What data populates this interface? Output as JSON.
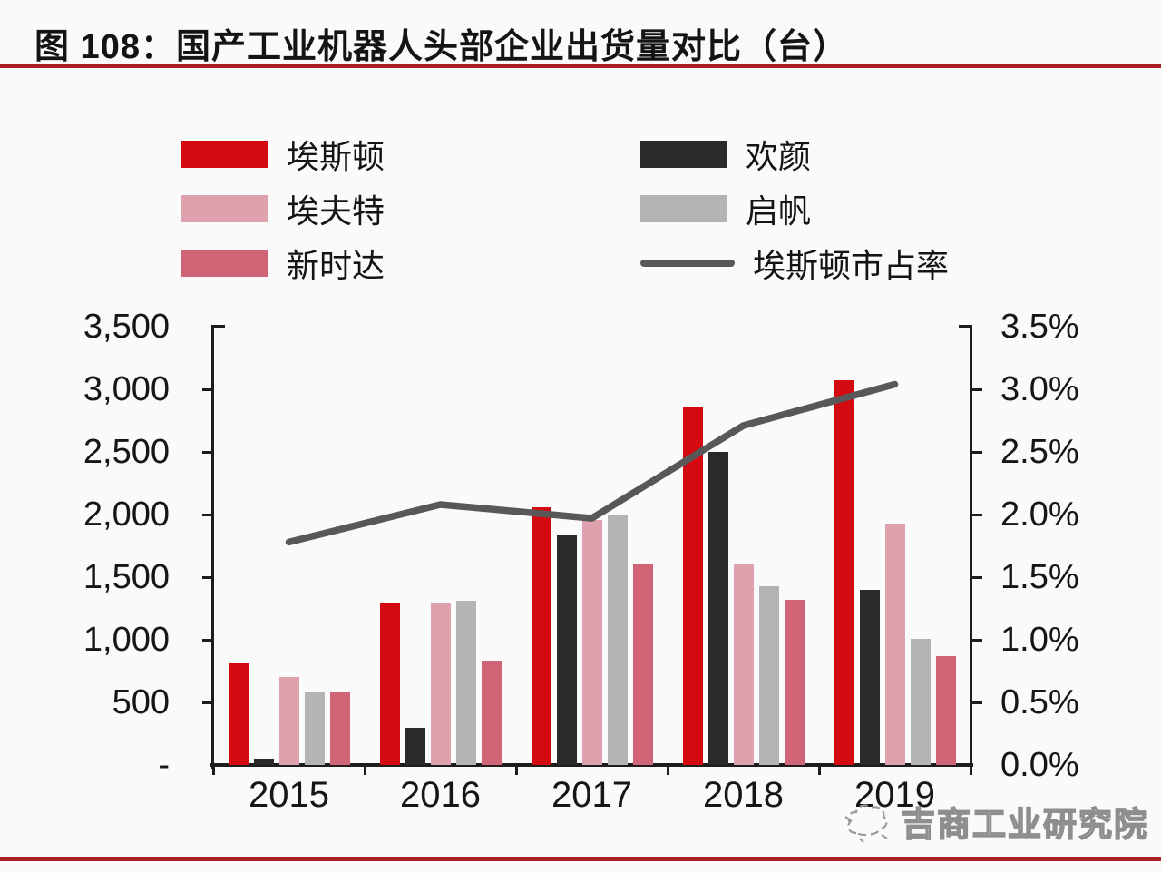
{
  "header": {
    "title": "图 108：国产工业机器人头部企业出货量对比（台）"
  },
  "colors": {
    "estun_red": "#d40a10",
    "huanyan_black": "#2b2a2a",
    "efort_pink": "#dda2ae",
    "qifan_gray": "#b4b4b6",
    "xinshida_rose": "#d16476",
    "share_line_gray": "#595757",
    "axis_black": "#1d1d1d",
    "title_rule_red": "#a81e22",
    "bottom_rule_red": "#a81e22",
    "background": "#fbfafb"
  },
  "legend": {
    "left_items": [
      {
        "label": "埃斯顿",
        "swatch": "bar",
        "color": "#d40a10"
      },
      {
        "label": "埃夫特",
        "swatch": "bar",
        "color": "#dda2ae"
      },
      {
        "label": "新时达",
        "swatch": "bar",
        "color": "#d16476"
      }
    ],
    "right_items": [
      {
        "label": "欢颜",
        "swatch": "bar",
        "color": "#2b2a2a"
      },
      {
        "label": "启帆",
        "swatch": "bar",
        "color": "#b4b4b6"
      },
      {
        "label": "埃斯顿市占率",
        "swatch": "line",
        "color": "#595757"
      }
    ]
  },
  "chart_data": {
    "type": "bar",
    "title": "国产工业机器人头部企业出货量对比（台）",
    "categories": [
      "2015",
      "2016",
      "2017",
      "2018",
      "2019"
    ],
    "series": [
      {
        "name": "埃斯顿",
        "color": "#d40a10",
        "values": [
          810,
          1300,
          2060,
          2860,
          3070
        ]
      },
      {
        "name": "欢颜",
        "color": "#2b2a2a",
        "values": [
          50,
          300,
          1830,
          2500,
          1400
        ]
      },
      {
        "name": "埃夫特",
        "color": "#dda2ae",
        "values": [
          700,
          1290,
          1960,
          1610,
          1930
        ]
      },
      {
        "name": "启帆",
        "color": "#b4b4b6",
        "values": [
          590,
          1310,
          2000,
          1430,
          1010
        ]
      },
      {
        "name": "新时达",
        "color": "#d16476",
        "values": [
          590,
          830,
          1600,
          1320,
          870
        ]
      }
    ],
    "line_series": {
      "name": "埃斯顿市占率",
      "color": "#595757",
      "unit": "%",
      "values": [
        1.78,
        2.08,
        1.97,
        2.71,
        3.04
      ]
    },
    "left_axis": {
      "ticks": [
        "3,500",
        "3,000",
        "2,500",
        "2,000",
        "1,500",
        "1,000",
        "500",
        "-"
      ],
      "ylim": [
        0,
        3500
      ],
      "grid": false
    },
    "right_axis": {
      "ticks": [
        "3.5%",
        "3.0%",
        "2.5%",
        "2.0%",
        "1.5%",
        "1.0%",
        "0.5%",
        "0.0%"
      ],
      "ylim": [
        0,
        3.5
      ],
      "grid": false
    },
    "legend_position": "top"
  },
  "watermark": {
    "text": "吉商工业研究院"
  }
}
